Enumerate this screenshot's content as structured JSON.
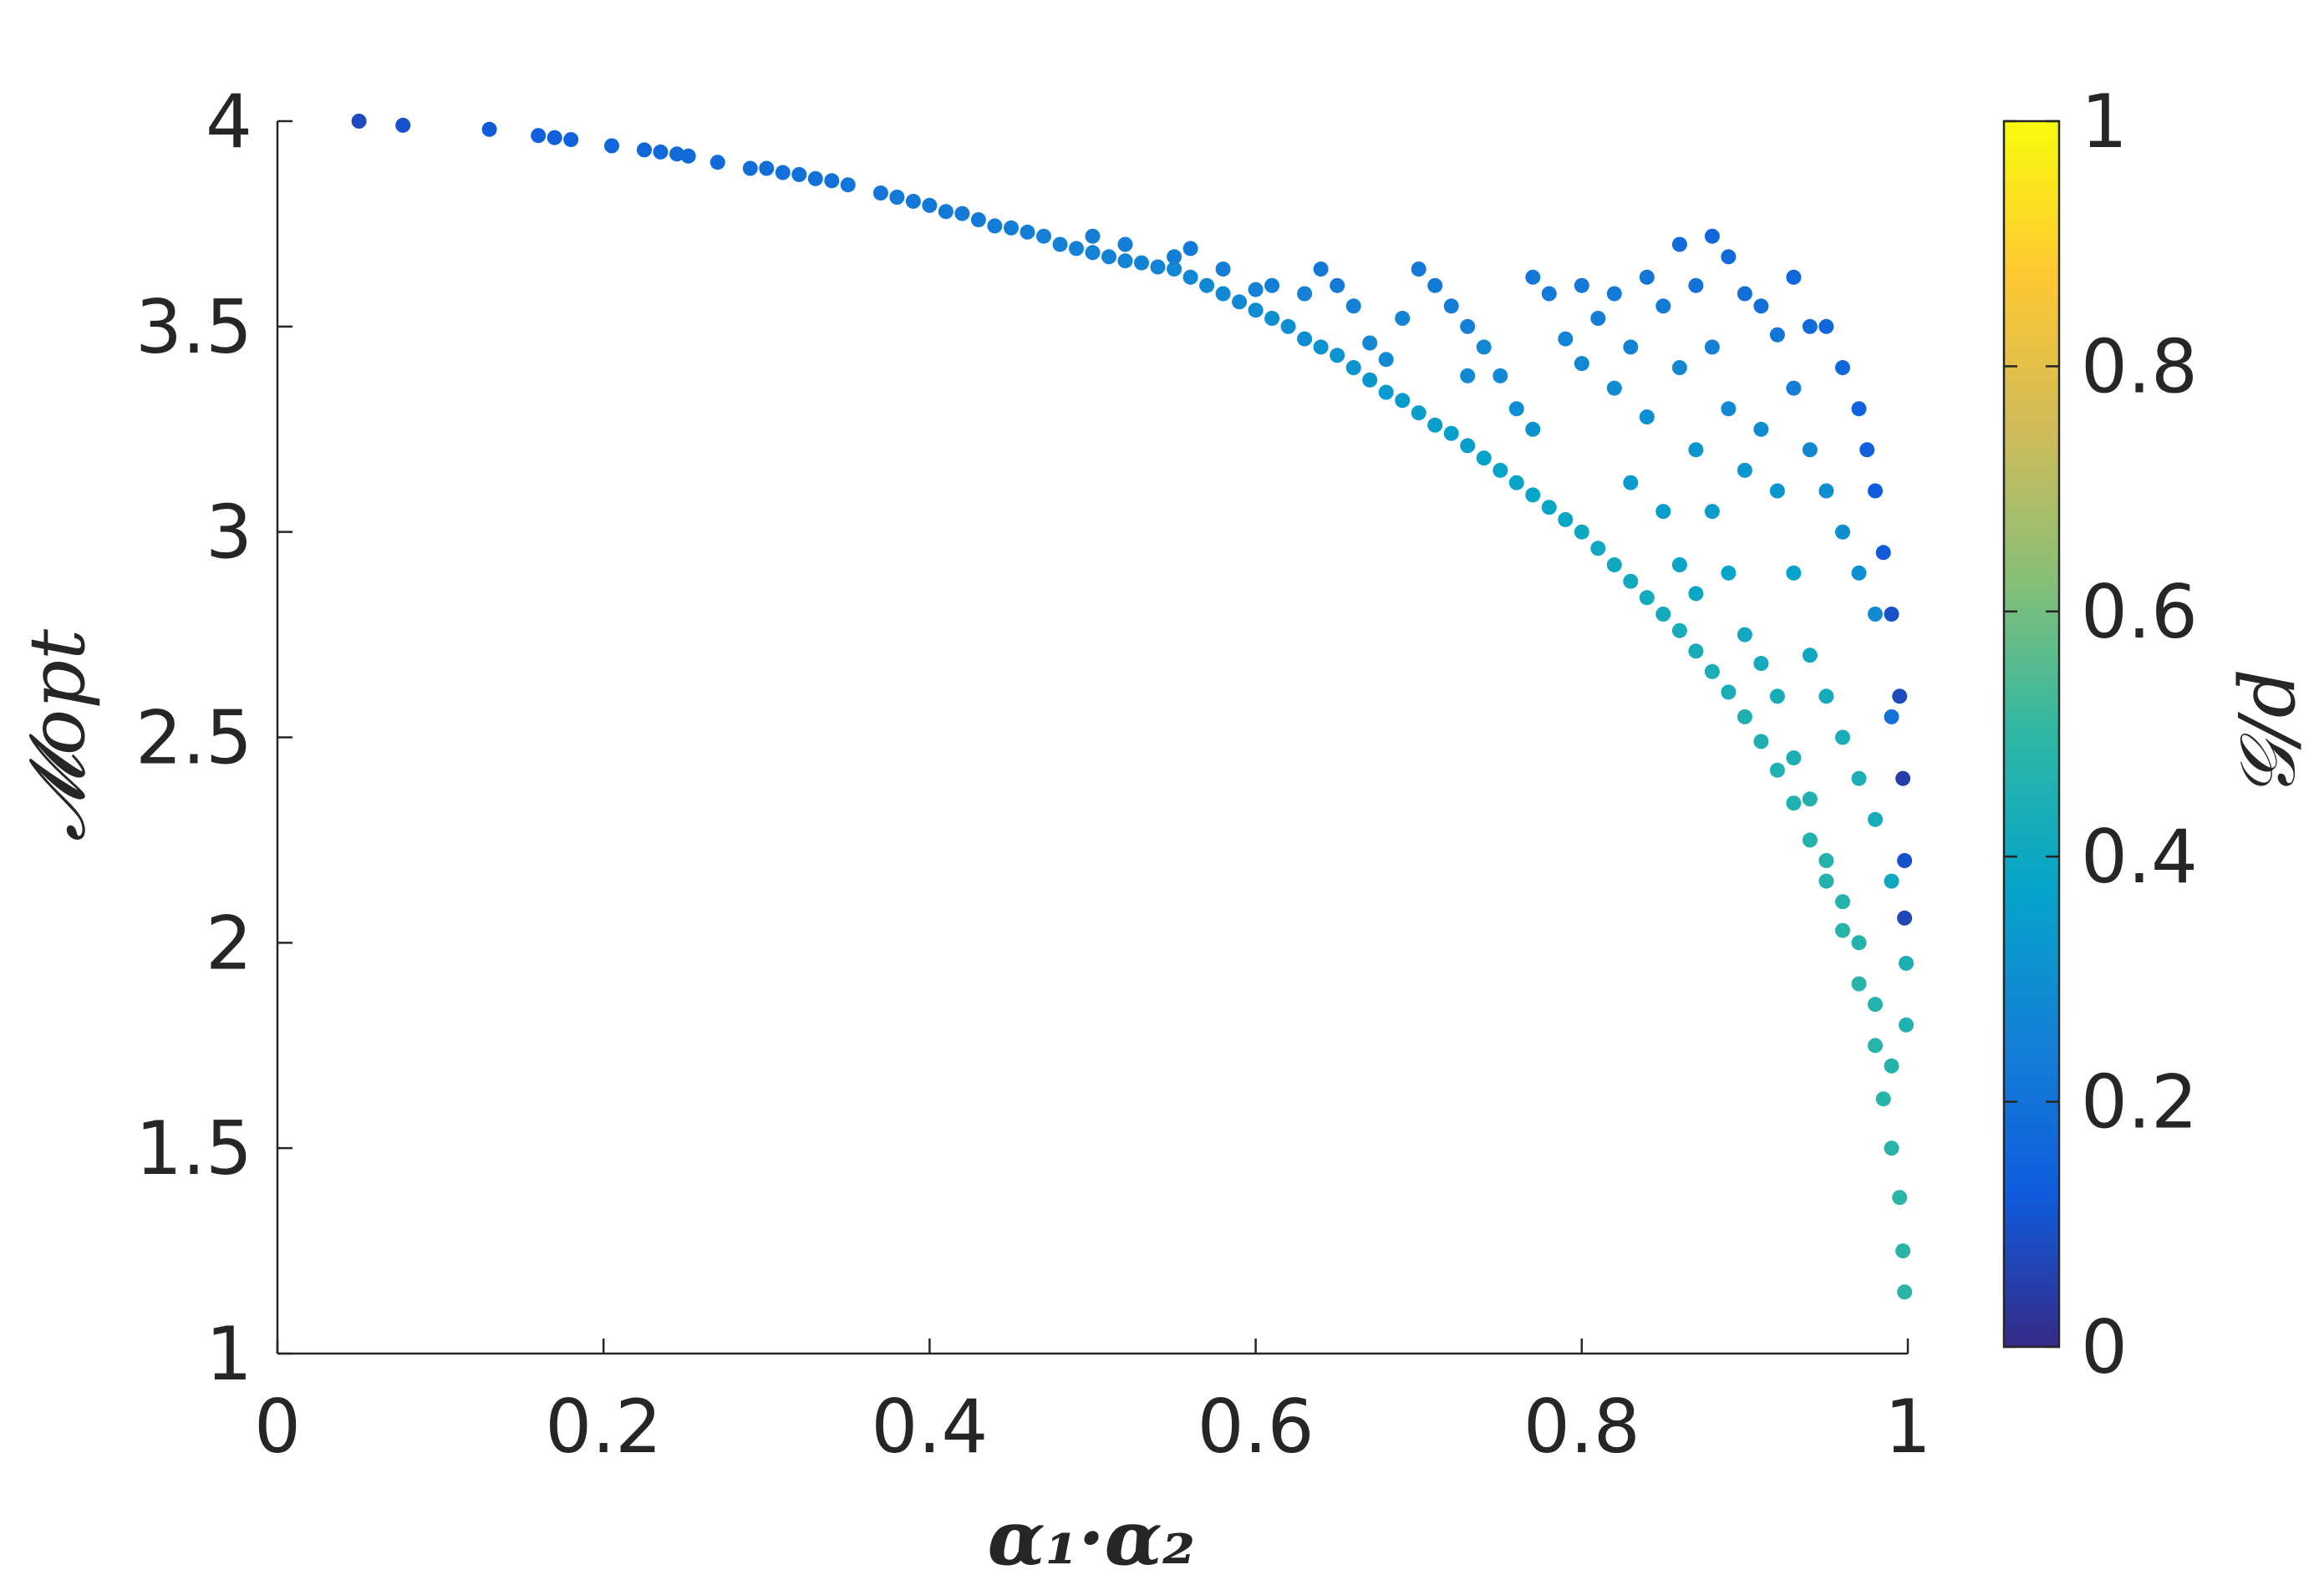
{
  "chart_data": {
    "type": "scatter",
    "title": "",
    "xlabel": "α₁·α₂",
    "ylabel": "𝓜opt",
    "xlim": [
      0,
      1
    ],
    "ylim": [
      1,
      4
    ],
    "x_ticks": [
      "0",
      "0.2",
      "0.4",
      "0.6",
      "0.8",
      "1"
    ],
    "y_ticks": [
      "1",
      "1.5",
      "2",
      "2.5",
      "3",
      "3.5",
      "4"
    ],
    "grid": false,
    "colorbar": {
      "label": "𝒢/d",
      "range": [
        0,
        1
      ],
      "ticks": [
        "0",
        "0.2",
        "0.4",
        "0.6",
        "0.8",
        "1"
      ],
      "colormap": "parula",
      "colors": [
        "#352a87",
        "#0f5cdd",
        "#1481d6",
        "#06a4ca",
        "#2eb7a4",
        "#87bf77",
        "#d1bb59",
        "#fec832",
        "#f9fb0e"
      ]
    },
    "series": [
      {
        "points": [
          [
            0.05,
            4.0,
            0.08
          ],
          [
            0.077,
            3.99,
            0.1
          ],
          [
            0.13,
            3.98,
            0.12
          ],
          [
            0.16,
            3.965,
            0.14
          ],
          [
            0.17,
            3.96,
            0.14
          ],
          [
            0.18,
            3.955,
            0.15
          ],
          [
            0.205,
            3.94,
            0.16
          ],
          [
            0.225,
            3.93,
            0.16
          ],
          [
            0.235,
            3.925,
            0.17
          ],
          [
            0.245,
            3.92,
            0.17
          ],
          [
            0.252,
            3.915,
            0.17
          ],
          [
            0.27,
            3.9,
            0.18
          ],
          [
            0.29,
            3.885,
            0.19
          ],
          [
            0.3,
            3.885,
            0.19
          ],
          [
            0.31,
            3.875,
            0.2
          ],
          [
            0.32,
            3.87,
            0.2
          ],
          [
            0.33,
            3.86,
            0.2
          ],
          [
            0.34,
            3.855,
            0.2
          ],
          [
            0.35,
            3.845,
            0.21
          ],
          [
            0.37,
            3.825,
            0.21
          ],
          [
            0.38,
            3.815,
            0.22
          ],
          [
            0.39,
            3.805,
            0.22
          ],
          [
            0.4,
            3.795,
            0.22
          ],
          [
            0.41,
            3.78,
            0.23
          ],
          [
            0.42,
            3.775,
            0.23
          ],
          [
            0.43,
            3.76,
            0.23
          ],
          [
            0.44,
            3.745,
            0.24
          ],
          [
            0.45,
            3.74,
            0.24
          ],
          [
            0.46,
            3.73,
            0.24
          ],
          [
            0.47,
            3.72,
            0.25
          ],
          [
            0.48,
            3.7,
            0.25
          ],
          [
            0.49,
            3.69,
            0.25
          ],
          [
            0.5,
            3.68,
            0.26
          ],
          [
            0.51,
            3.67,
            0.26
          ],
          [
            0.52,
            3.66,
            0.26
          ],
          [
            0.53,
            3.655,
            0.26
          ],
          [
            0.54,
            3.645,
            0.26
          ],
          [
            0.55,
            3.64,
            0.27
          ],
          [
            0.56,
            3.62,
            0.27
          ],
          [
            0.57,
            3.6,
            0.27
          ],
          [
            0.58,
            3.58,
            0.28
          ],
          [
            0.59,
            3.56,
            0.28
          ],
          [
            0.6,
            3.54,
            0.29
          ],
          [
            0.61,
            3.52,
            0.3
          ],
          [
            0.62,
            3.5,
            0.3
          ],
          [
            0.63,
            3.47,
            0.3
          ],
          [
            0.64,
            3.45,
            0.31
          ],
          [
            0.65,
            3.43,
            0.32
          ],
          [
            0.66,
            3.4,
            0.32
          ],
          [
            0.67,
            3.37,
            0.33
          ],
          [
            0.68,
            3.34,
            0.34
          ],
          [
            0.69,
            3.32,
            0.34
          ],
          [
            0.7,
            3.29,
            0.35
          ],
          [
            0.71,
            3.26,
            0.35
          ],
          [
            0.72,
            3.24,
            0.36
          ],
          [
            0.73,
            3.21,
            0.36
          ],
          [
            0.74,
            3.18,
            0.37
          ],
          [
            0.75,
            3.15,
            0.37
          ],
          [
            0.76,
            3.12,
            0.38
          ],
          [
            0.77,
            3.09,
            0.38
          ],
          [
            0.78,
            3.06,
            0.39
          ],
          [
            0.79,
            3.03,
            0.39
          ],
          [
            0.8,
            3.0,
            0.4
          ],
          [
            0.81,
            2.96,
            0.4
          ],
          [
            0.82,
            2.92,
            0.41
          ],
          [
            0.83,
            2.88,
            0.41
          ],
          [
            0.84,
            2.84,
            0.42
          ],
          [
            0.85,
            2.8,
            0.42
          ],
          [
            0.86,
            2.76,
            0.43
          ],
          [
            0.87,
            2.71,
            0.43
          ],
          [
            0.88,
            2.66,
            0.44
          ],
          [
            0.89,
            2.61,
            0.44
          ],
          [
            0.9,
            2.55,
            0.45
          ],
          [
            0.91,
            2.49,
            0.45
          ],
          [
            0.92,
            2.42,
            0.46
          ],
          [
            0.93,
            2.34,
            0.46
          ],
          [
            0.94,
            2.25,
            0.47
          ],
          [
            0.95,
            2.15,
            0.47
          ],
          [
            0.96,
            2.03,
            0.48
          ],
          [
            0.97,
            1.9,
            0.48
          ],
          [
            0.98,
            1.75,
            0.48
          ],
          [
            0.985,
            1.62,
            0.48
          ],
          [
            0.99,
            1.5,
            0.48
          ],
          [
            0.995,
            1.38,
            0.49
          ],
          [
            0.997,
            1.25,
            0.49
          ],
          [
            0.998,
            1.15,
            0.49
          ],
          [
            0.5,
            3.72,
            0.24
          ],
          [
            0.52,
            3.7,
            0.24
          ],
          [
            0.55,
            3.67,
            0.24
          ],
          [
            0.56,
            3.69,
            0.23
          ],
          [
            0.58,
            3.64,
            0.24
          ],
          [
            0.6,
            3.59,
            0.25
          ],
          [
            0.61,
            3.6,
            0.24
          ],
          [
            0.63,
            3.58,
            0.25
          ],
          [
            0.64,
            3.64,
            0.22
          ],
          [
            0.65,
            3.6,
            0.23
          ],
          [
            0.66,
            3.55,
            0.25
          ],
          [
            0.67,
            3.46,
            0.27
          ],
          [
            0.68,
            3.42,
            0.28
          ],
          [
            0.69,
            3.52,
            0.26
          ],
          [
            0.7,
            3.64,
            0.22
          ],
          [
            0.71,
            3.6,
            0.23
          ],
          [
            0.72,
            3.55,
            0.24
          ],
          [
            0.73,
            3.5,
            0.25
          ],
          [
            0.73,
            3.38,
            0.28
          ],
          [
            0.74,
            3.45,
            0.27
          ],
          [
            0.75,
            3.38,
            0.28
          ],
          [
            0.76,
            3.3,
            0.3
          ],
          [
            0.77,
            3.25,
            0.31
          ],
          [
            0.77,
            3.62,
            0.22
          ],
          [
            0.78,
            3.58,
            0.23
          ],
          [
            0.79,
            3.47,
            0.26
          ],
          [
            0.8,
            3.41,
            0.27
          ],
          [
            0.8,
            3.6,
            0.22
          ],
          [
            0.81,
            3.52,
            0.24
          ],
          [
            0.82,
            3.35,
            0.29
          ],
          [
            0.82,
            3.58,
            0.23
          ],
          [
            0.83,
            3.45,
            0.26
          ],
          [
            0.83,
            3.12,
            0.34
          ],
          [
            0.84,
            3.62,
            0.21
          ],
          [
            0.84,
            3.28,
            0.3
          ],
          [
            0.85,
            3.55,
            0.23
          ],
          [
            0.85,
            3.05,
            0.35
          ],
          [
            0.86,
            3.7,
            0.18
          ],
          [
            0.86,
            3.4,
            0.27
          ],
          [
            0.86,
            2.92,
            0.38
          ],
          [
            0.87,
            3.6,
            0.2
          ],
          [
            0.87,
            3.2,
            0.32
          ],
          [
            0.87,
            2.85,
            0.39
          ],
          [
            0.88,
            3.72,
            0.16
          ],
          [
            0.88,
            3.45,
            0.25
          ],
          [
            0.88,
            3.05,
            0.35
          ],
          [
            0.89,
            3.67,
            0.17
          ],
          [
            0.89,
            3.3,
            0.28
          ],
          [
            0.89,
            2.9,
            0.38
          ],
          [
            0.9,
            3.58,
            0.19
          ],
          [
            0.9,
            3.15,
            0.32
          ],
          [
            0.9,
            2.75,
            0.41
          ],
          [
            0.91,
            3.55,
            0.19
          ],
          [
            0.91,
            3.25,
            0.29
          ],
          [
            0.91,
            2.68,
            0.42
          ],
          [
            0.92,
            3.48,
            0.21
          ],
          [
            0.92,
            3.1,
            0.33
          ],
          [
            0.92,
            2.6,
            0.43
          ],
          [
            0.93,
            3.62,
            0.16
          ],
          [
            0.93,
            3.35,
            0.24
          ],
          [
            0.93,
            2.9,
            0.37
          ],
          [
            0.93,
            2.45,
            0.45
          ],
          [
            0.94,
            3.5,
            0.18
          ],
          [
            0.94,
            3.2,
            0.28
          ],
          [
            0.94,
            2.7,
            0.4
          ],
          [
            0.94,
            2.35,
            0.46
          ],
          [
            0.95,
            3.5,
            0.16
          ],
          [
            0.95,
            3.1,
            0.3
          ],
          [
            0.95,
            2.6,
            0.42
          ],
          [
            0.95,
            2.2,
            0.47
          ],
          [
            0.96,
            3.4,
            0.16
          ],
          [
            0.96,
            3.0,
            0.3
          ],
          [
            0.96,
            2.5,
            0.43
          ],
          [
            0.96,
            2.1,
            0.47
          ],
          [
            0.97,
            3.3,
            0.15
          ],
          [
            0.97,
            2.9,
            0.3
          ],
          [
            0.97,
            2.4,
            0.44
          ],
          [
            0.97,
            2.0,
            0.47
          ],
          [
            0.975,
            3.2,
            0.14
          ],
          [
            0.98,
            3.1,
            0.13
          ],
          [
            0.98,
            2.8,
            0.28
          ],
          [
            0.98,
            2.3,
            0.43
          ],
          [
            0.98,
            1.85,
            0.47
          ],
          [
            0.985,
            2.95,
            0.12
          ],
          [
            0.99,
            2.8,
            0.1
          ],
          [
            0.99,
            2.55,
            0.2
          ],
          [
            0.99,
            2.15,
            0.4
          ],
          [
            0.99,
            1.7,
            0.47
          ],
          [
            0.995,
            2.6,
            0.08
          ],
          [
            0.997,
            2.4,
            0.05
          ],
          [
            0.998,
            2.2,
            0.1
          ],
          [
            0.998,
            2.06,
            0.07
          ],
          [
            0.999,
            1.95,
            0.45
          ],
          [
            0.999,
            1.8,
            0.46
          ]
        ]
      }
    ]
  }
}
